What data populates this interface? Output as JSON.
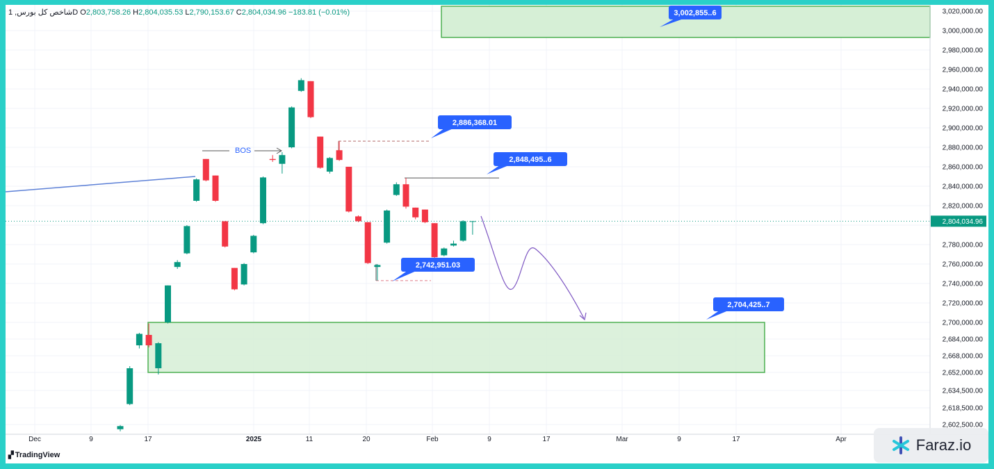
{
  "header": {
    "symbol": "شاخص کل بورس, 1D",
    "open_label": "O",
    "open": "2,803,758.26",
    "high_label": "H",
    "high": "2,804,035.53",
    "low_label": "L",
    "low": "2,790,153.67",
    "close_label": "C",
    "close": "2,804,034.96",
    "change": "−183.81 (−0.01%)"
  },
  "branding": {
    "tradingview": "TradingView",
    "watermark": "Faraz.io"
  },
  "colors": {
    "up": "#089981",
    "down": "#f23645",
    "zone_fill": "#d6efd6",
    "zone_stroke": "#4caf50",
    "label_bg": "#2962ff",
    "trendline": "#5b7fd6",
    "projection": "#7e57c2"
  },
  "chart_data": {
    "type": "candlestick",
    "y_ticks": [
      {
        "value": 3020000,
        "label": "3,020,000.00"
      },
      {
        "value": 3000000,
        "label": "3,000,000.00"
      },
      {
        "value": 2980000,
        "label": "2,980,000.00"
      },
      {
        "value": 2960000,
        "label": "2,960,000.00"
      },
      {
        "value": 2940000,
        "label": "2,940,000.00"
      },
      {
        "value": 2920000,
        "label": "2,920,000.00"
      },
      {
        "value": 2900000,
        "label": "2,900,000.00"
      },
      {
        "value": 2880000,
        "label": "2,880,000.00"
      },
      {
        "value": 2860000,
        "label": "2,860,000.00"
      },
      {
        "value": 2840000,
        "label": "2,840,000.00"
      },
      {
        "value": 2820000,
        "label": "2,820,000.00"
      },
      {
        "value": 2800000,
        "label": "2,800,000.00"
      },
      {
        "value": 2780000,
        "label": "2,780,000.00"
      },
      {
        "value": 2760000,
        "label": "2,760,000.00"
      },
      {
        "value": 2740000,
        "label": "2,740,000.00"
      },
      {
        "value": 2720000,
        "label": "2,720,000.00"
      },
      {
        "value": 2700000,
        "label": "2,700,000.00"
      },
      {
        "value": 2684000,
        "label": "2,684,000.00"
      },
      {
        "value": 2668000,
        "label": "2,668,000.00"
      },
      {
        "value": 2652000,
        "label": "2,652,000.00"
      },
      {
        "value": 2634500,
        "label": "2,634,500.00"
      },
      {
        "value": 2618500,
        "label": "2,618,500.00"
      },
      {
        "value": 2602500,
        "label": "2,602,500.00"
      }
    ],
    "x_ticks": [
      "Dec",
      "9",
      "17",
      "2025",
      "11",
      "20",
      "Feb",
      "9",
      "17",
      "Mar",
      "9",
      "17",
      "Apr"
    ],
    "candles": [
      {
        "o": 2598000,
        "h": 2602000,
        "l": 2596000,
        "c": 2601000
      },
      {
        "o": 2622000,
        "h": 2658000,
        "l": 2621000,
        "c": 2656000
      },
      {
        "o": 2678000,
        "h": 2690000,
        "l": 2675000,
        "c": 2689000
      },
      {
        "o": 2688000,
        "h": 2699000,
        "l": 2676000,
        "c": 2678000
      },
      {
        "o": 2656000,
        "h": 2681000,
        "l": 2650000,
        "c": 2680000
      },
      {
        "o": 2700000,
        "h": 2738000,
        "l": 2699000,
        "c": 2738000
      },
      {
        "o": 2757000,
        "h": 2764000,
        "l": 2755000,
        "c": 2762000
      },
      {
        "o": 2771000,
        "h": 2800000,
        "l": 2770000,
        "c": 2799000
      },
      {
        "o": 2825000,
        "h": 2848000,
        "l": 2824000,
        "c": 2847000
      },
      {
        "o": 2868000,
        "h": 2868000,
        "l": 2845000,
        "c": 2846000
      },
      {
        "o": 2851000,
        "h": 2851000,
        "l": 2824000,
        "c": 2825000
      },
      {
        "o": 2804000,
        "h": 2804000,
        "l": 2777000,
        "c": 2778000
      },
      {
        "o": 2756000,
        "h": 2756000,
        "l": 2733000,
        "c": 2734000
      },
      {
        "o": 2739000,
        "h": 2761000,
        "l": 2738000,
        "c": 2760000
      },
      {
        "o": 2772000,
        "h": 2790000,
        "l": 2771000,
        "c": 2789000
      },
      {
        "o": 2802000,
        "h": 2850000,
        "l": 2801000,
        "c": 2849000
      },
      {
        "o": 2868000,
        "h": 2872000,
        "l": 2865000,
        "c": 2867000
      },
      {
        "o": 2863000,
        "h": 2875000,
        "l": 2853000,
        "c": 2872000
      },
      {
        "o": 2880000,
        "h": 2922000,
        "l": 2879000,
        "c": 2921000
      },
      {
        "o": 2938000,
        "h": 2951000,
        "l": 2937000,
        "c": 2949000
      },
      {
        "o": 2948000,
        "h": 2948000,
        "l": 2910000,
        "c": 2911000
      },
      {
        "o": 2891000,
        "h": 2891000,
        "l": 2858000,
        "c": 2859000
      },
      {
        "o": 2855000,
        "h": 2870000,
        "l": 2853000,
        "c": 2869000
      },
      {
        "o": 2877000,
        "h": 2886000,
        "l": 2866000,
        "c": 2867000
      },
      {
        "o": 2860000,
        "h": 2860000,
        "l": 2813000,
        "c": 2814000
      },
      {
        "o": 2809000,
        "h": 2810000,
        "l": 2803000,
        "c": 2804000
      },
      {
        "o": 2803000,
        "h": 2803000,
        "l": 2760000,
        "c": 2761000
      },
      {
        "o": 2757000,
        "h": 2760000,
        "l": 2742951,
        "c": 2759000
      },
      {
        "o": 2782000,
        "h": 2816000,
        "l": 2781000,
        "c": 2815000
      },
      {
        "o": 2831000,
        "h": 2844000,
        "l": 2830000,
        "c": 2842000
      },
      {
        "o": 2842000,
        "h": 2848495,
        "l": 2817000,
        "c": 2819000
      },
      {
        "o": 2818000,
        "h": 2818000,
        "l": 2806000,
        "c": 2808000
      },
      {
        "o": 2816000,
        "h": 2816000,
        "l": 2802000,
        "c": 2803000
      },
      {
        "o": 2802000,
        "h": 2802000,
        "l": 2766000,
        "c": 2767000
      },
      {
        "o": 2769000,
        "h": 2777000,
        "l": 2768000,
        "c": 2776000
      },
      {
        "o": 2779000,
        "h": 2784000,
        "l": 2778000,
        "c": 2781000
      },
      {
        "o": 2784000,
        "h": 2805000,
        "l": 2783000,
        "c": 2804000
      },
      {
        "o": 2803758.26,
        "h": 2804035.53,
        "l": 2790153.67,
        "c": 2804034.96
      }
    ],
    "last_price": {
      "value": 2804034.96,
      "label": "2,804,034.96"
    },
    "annotations": [
      {
        "type": "label",
        "text": "3,002,855..6"
      },
      {
        "type": "label",
        "text": "2,886,368.01"
      },
      {
        "type": "label",
        "text": "2,848,495..6"
      },
      {
        "type": "label",
        "text": "2,742,951.03"
      },
      {
        "type": "label",
        "text": "2,704,425..7"
      },
      {
        "type": "text",
        "text": "BOS"
      }
    ],
    "zones": [
      {
        "from": 2993000,
        "to": 3025000
      },
      {
        "from": 2652000,
        "to": 2700000
      }
    ],
    "grid": true
  }
}
